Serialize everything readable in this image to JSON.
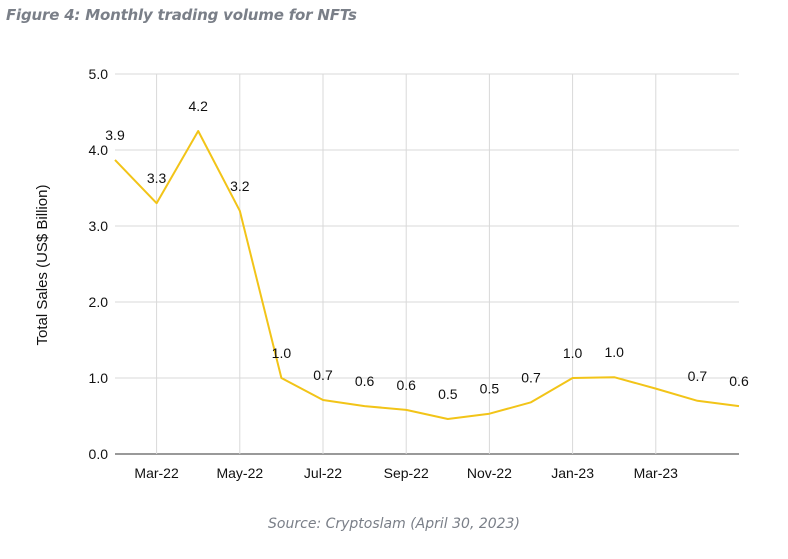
{
  "figure": {
    "title": "Figure 4: Monthly trading volume for NFTs",
    "source": "Source: Cryptoslam (April 30, 2023)"
  },
  "colors": {
    "line": "#f2c418",
    "grid": "#d9d9d9",
    "axis": "#333333"
  },
  "chart_data": {
    "type": "line",
    "title": "",
    "xlabel": "",
    "ylabel": "Total Sales (US$ Billion)",
    "ylim": [
      0,
      5
    ],
    "yticks": [
      "0.0",
      "1.0",
      "2.0",
      "3.0",
      "4.0",
      "5.0"
    ],
    "x_tick_labels": [
      "Mar-22",
      "May-22",
      "Jul-22",
      "Sep-22",
      "Nov-22",
      "Jan-23",
      "Mar-23"
    ],
    "x": [
      "Feb-22",
      "Mar-22",
      "Apr-22",
      "May-22",
      "Jun-22",
      "Jul-22",
      "Aug-22",
      "Sep-22",
      "Oct-22",
      "Nov-22",
      "Dec-22",
      "Jan-23",
      "Feb-23",
      "Mar-23",
      "Apr-23",
      "May-23"
    ],
    "values": [
      3.87,
      3.3,
      4.25,
      3.2,
      1.0,
      0.71,
      0.63,
      0.58,
      0.46,
      0.53,
      0.68,
      1.0,
      1.01,
      0.86,
      0.7,
      0.63
    ],
    "data_labels": [
      "3.9",
      "3.3",
      "4.2",
      "3.2",
      "1.0",
      "0.7",
      "0.6",
      "0.6",
      "0.5",
      "0.5",
      "0.7",
      "1.0",
      "1.0",
      "",
      "0.7",
      "0.6"
    ],
    "grid": true,
    "legend": "none"
  }
}
